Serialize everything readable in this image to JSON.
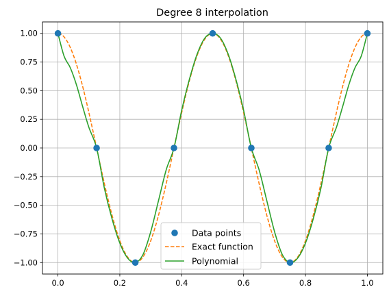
{
  "chart_data": {
    "type": "line",
    "title": "Degree 8 interpolation",
    "xlabel": "",
    "ylabel": "",
    "xlim": [
      -0.05,
      1.05
    ],
    "ylim": [
      -1.1,
      1.1
    ],
    "grid": true,
    "legend_position": "bottom-center",
    "x_ticks": [
      0.0,
      0.2,
      0.4,
      0.6,
      0.8,
      1.0
    ],
    "x_tick_labels": [
      "0.0",
      "0.2",
      "0.4",
      "0.6",
      "0.8",
      "1.0"
    ],
    "y_ticks": [
      1.0,
      0.75,
      0.5,
      0.25,
      0.0,
      -0.25,
      -0.5,
      -0.75,
      -1.0
    ],
    "y_tick_labels": [
      "1.00",
      "0.75",
      "0.50",
      "0.25",
      "0.00",
      "−0.25",
      "−0.50",
      "−0.75",
      "−1.00"
    ],
    "series": [
      {
        "name": "Data points",
        "style": "markers",
        "color": "#1f77b4",
        "x": [
          0.0,
          0.125,
          0.25,
          0.375,
          0.5,
          0.625,
          0.75,
          0.875,
          1.0
        ],
        "y": [
          1.0,
          0.0,
          -1.0,
          0.0,
          1.0,
          0.0,
          -1.0,
          0.0,
          1.0
        ]
      },
      {
        "name": "Exact function",
        "style": "dashed",
        "color": "#ff7f0e",
        "function": "cos(4*pi*x)"
      },
      {
        "name": "Polynomial",
        "style": "solid",
        "color": "#2ca02c",
        "x": [
          0.0,
          0.02,
          0.04,
          0.06,
          0.08,
          0.1,
          0.125,
          0.15,
          0.175,
          0.2,
          0.225,
          0.25,
          0.275,
          0.3,
          0.325,
          0.35,
          0.375,
          0.4,
          0.425,
          0.45,
          0.475,
          0.5,
          0.525,
          0.55,
          0.575,
          0.6,
          0.625,
          0.65,
          0.675,
          0.7,
          0.725,
          0.75,
          0.775,
          0.8,
          0.825,
          0.85,
          0.875,
          0.9,
          0.92,
          0.94,
          0.96,
          0.98,
          1.0
        ],
        "y": [
          1.0,
          0.8,
          0.7,
          0.55,
          0.36,
          0.18,
          0.0,
          -0.35,
          -0.62,
          -0.83,
          -0.96,
          -1.0,
          -0.93,
          -0.73,
          -0.46,
          -0.19,
          0.0,
          0.33,
          0.6,
          0.82,
          0.96,
          1.0,
          0.96,
          0.82,
          0.6,
          0.33,
          0.0,
          -0.19,
          -0.46,
          -0.73,
          -0.93,
          -1.0,
          -0.96,
          -0.83,
          -0.62,
          -0.35,
          0.0,
          0.18,
          0.36,
          0.55,
          0.7,
          0.8,
          1.0
        ]
      }
    ]
  }
}
